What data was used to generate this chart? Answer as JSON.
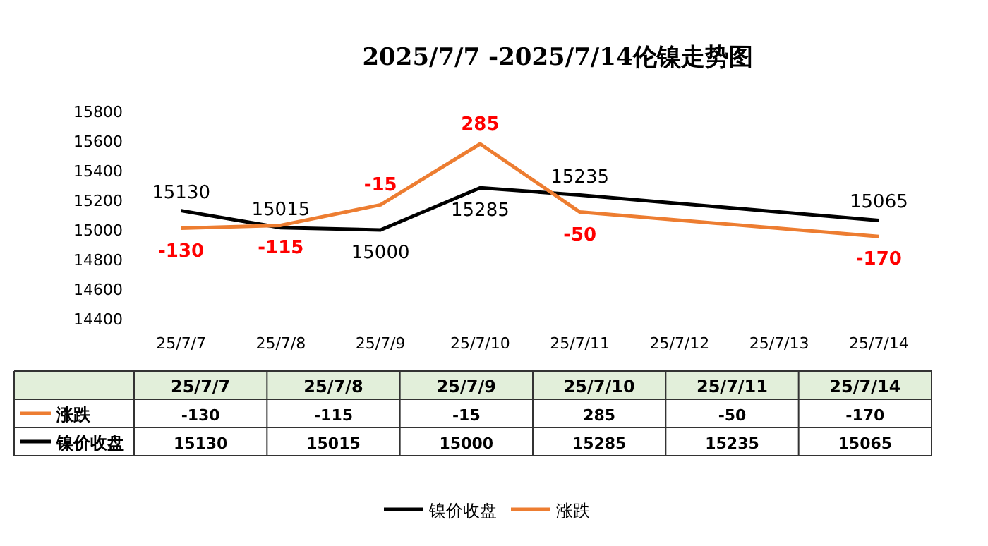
{
  "chart_data": {
    "type": "line",
    "title": "2025/7/7 -2025/7/14伦镍走势图",
    "categories": [
      "25/7/7",
      "25/7/8",
      "25/7/9",
      "25/7/10",
      "25/7/11",
      "25/7/12",
      "25/7/13",
      "25/7/14"
    ],
    "series": [
      {
        "name": "镍价收盘",
        "color": "#000000",
        "values": [
          15130,
          15015,
          15000,
          15285,
          15235,
          null,
          null,
          15065
        ],
        "value_labels": [
          "15130",
          "15015",
          "15000",
          "15285",
          "15235",
          null,
          null,
          "15065"
        ]
      },
      {
        "name": "涨跌",
        "color": "#ed7d31",
        "axis": "y2",
        "values": [
          -130,
          -115,
          -15,
          285,
          -50,
          null,
          null,
          -170
        ],
        "value_labels": [
          "-130",
          "-115",
          "-15",
          "285",
          "-50",
          null,
          null,
          "-170"
        ]
      }
    ],
    "ylim": [
      14400,
      15800
    ],
    "yticks": [
      14400,
      14600,
      14800,
      15000,
      15200,
      15400,
      15600,
      15800
    ],
    "data_labels": true,
    "annotations": [
      "-130",
      "-115",
      "-15",
      "285",
      "-50",
      "-170",
      "15130",
      "15015",
      "15000",
      "15285",
      "15235",
      "15065"
    ],
    "legend": "bottom",
    "grid": false,
    "marker": "none",
    "line_style": "solid"
  }
}
